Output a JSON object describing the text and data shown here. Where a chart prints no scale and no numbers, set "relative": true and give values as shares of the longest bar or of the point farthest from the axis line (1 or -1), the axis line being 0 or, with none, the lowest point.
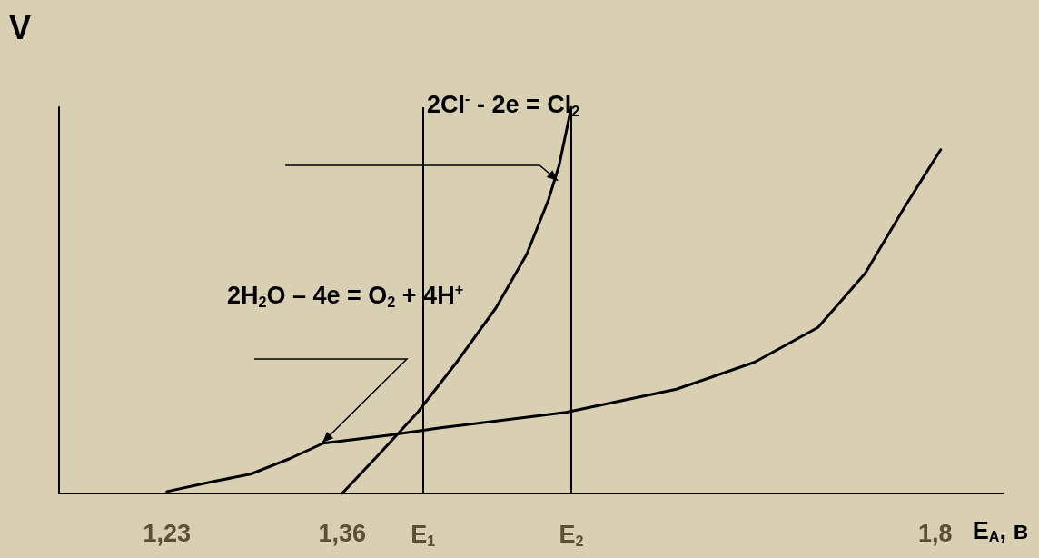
{
  "chart_data": {
    "type": "line",
    "relative": true,
    "xlabel": "E$_{A}$, в",
    "ylabel": "V",
    "xlim": [
      1.15,
      1.85
    ],
    "xticks": [
      {
        "value": 1.23,
        "label": "1,23"
      },
      {
        "value": 1.36,
        "label": "1,36"
      },
      {
        "value": 1.8,
        "label": "1,8"
      }
    ],
    "ref_lines": [
      {
        "axis": "x",
        "value": 1.42,
        "label": "E$_{1}$"
      },
      {
        "axis": "x",
        "value": 1.53,
        "label": "E$_{2}$"
      }
    ],
    "marker": "none",
    "line_style": "solid",
    "series": [
      {
        "color": "#000000",
        "x": [
          1.23,
          1.263,
          1.292,
          1.321,
          1.346,
          1.393,
          1.433,
          1.526,
          1.608,
          1.666,
          1.713,
          1.748,
          1.777,
          1.804
        ],
        "values": [
          0.005,
          0.03,
          0.05,
          0.09,
          0.13,
          0.15,
          0.17,
          0.21,
          0.27,
          0.34,
          0.43,
          0.57,
          0.74,
          0.89
        ]
      },
      {
        "color": "#000000",
        "x": [
          1.36,
          1.387,
          1.416,
          1.445,
          1.474,
          1.497,
          1.513,
          1.521,
          1.53
        ],
        "values": [
          0,
          0.1,
          0.21,
          0.34,
          0.48,
          0.62,
          0.76,
          0.85,
          1.0
        ]
      }
    ],
    "annotations": [
      {
        "text": "2Cl$^{-}$ - 2e = Cl$_{2}$",
        "x": 1.52,
        "y": 0.81
      },
      "2H$_{2}$O – 4e = O$_{2}$ + 4H$^{+}$"
    ]
  }
}
